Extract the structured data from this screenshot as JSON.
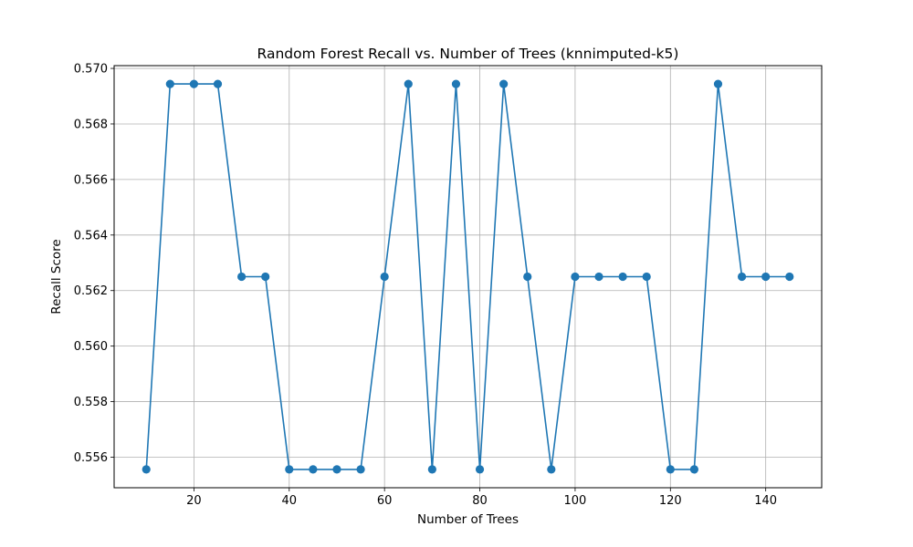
{
  "chart_data": {
    "type": "line",
    "title": "Random Forest Recall vs. Number of Trees (knnimputed-k5)",
    "xlabel": "Number of Trees",
    "ylabel": "Recall Score",
    "xlim": [
      3.25,
      151.75
    ],
    "ylim": [
      0.5549,
      0.5701
    ],
    "x_ticks": [
      20,
      40,
      60,
      80,
      100,
      120,
      140
    ],
    "x_tick_labels": [
      "20",
      "40",
      "60",
      "80",
      "100",
      "120",
      "140"
    ],
    "y_ticks": [
      0.556,
      0.558,
      0.56,
      0.562,
      0.564,
      0.566,
      0.568,
      0.57
    ],
    "y_tick_labels": [
      "0.556",
      "0.558",
      "0.560",
      "0.562",
      "0.564",
      "0.566",
      "0.568",
      "0.570"
    ],
    "grid": true,
    "color": "#1f77b4",
    "series": [
      {
        "x": [
          10,
          15,
          20,
          25,
          30,
          35,
          40,
          45,
          50,
          55,
          60,
          65,
          70,
          75,
          80,
          85,
          90,
          95,
          100,
          105,
          110,
          115,
          120,
          125,
          130,
          135,
          140,
          145
        ],
        "values": [
          0.55556,
          0.56944,
          0.56944,
          0.56944,
          0.5625,
          0.5625,
          0.55556,
          0.55556,
          0.55556,
          0.55556,
          0.5625,
          0.56944,
          0.55556,
          0.56944,
          0.55556,
          0.56944,
          0.5625,
          0.55556,
          0.5625,
          0.5625,
          0.5625,
          0.5625,
          0.55556,
          0.55556,
          0.56944,
          0.5625,
          0.5625,
          0.5625
        ]
      }
    ]
  }
}
